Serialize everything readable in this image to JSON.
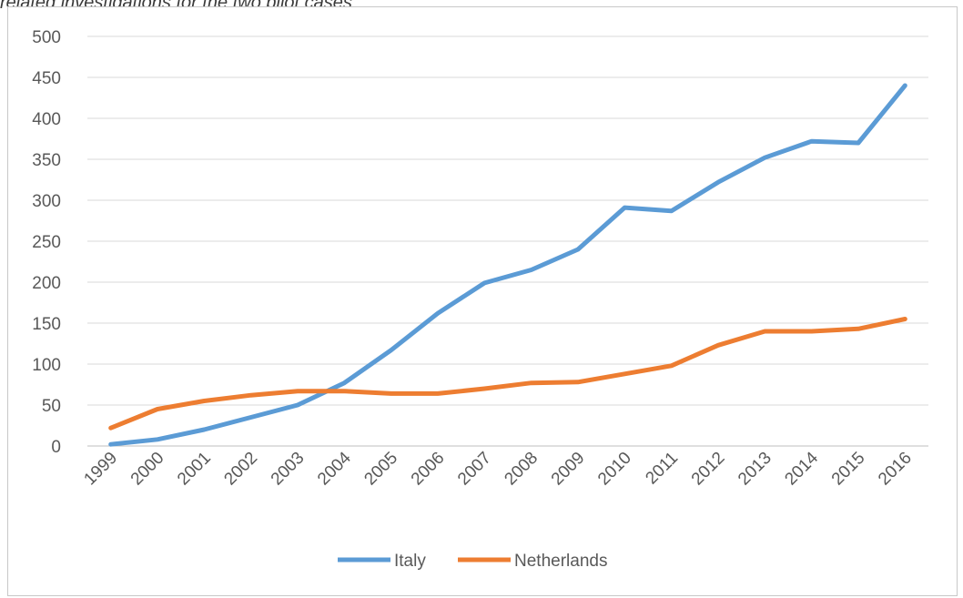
{
  "caption": "related investigations for the two pilot cases",
  "chart_data": {
    "type": "line",
    "title": "",
    "xlabel": "",
    "ylabel": "",
    "categories": [
      "1999",
      "2000",
      "2001",
      "2002",
      "2003",
      "2004",
      "2005",
      "2006",
      "2007",
      "2008",
      "2009",
      "2010",
      "2011",
      "2012",
      "2013",
      "2014",
      "2015",
      "2016"
    ],
    "ylim": [
      0,
      500
    ],
    "yticks": [
      0,
      50,
      100,
      150,
      200,
      250,
      300,
      350,
      400,
      450,
      500
    ],
    "grid": true,
    "legend_position": "bottom",
    "series": [
      {
        "name": "Italy",
        "color": "#5b9bd5",
        "values": [
          2,
          8,
          20,
          35,
          50,
          77,
          117,
          162,
          199,
          215,
          240,
          291,
          287,
          322,
          352,
          372,
          370,
          440
        ]
      },
      {
        "name": "Netherlands",
        "color": "#ed7d31",
        "values": [
          22,
          45,
          55,
          62,
          67,
          67,
          64,
          64,
          70,
          77,
          78,
          88,
          98,
          123,
          140,
          140,
          143,
          155
        ]
      }
    ]
  }
}
